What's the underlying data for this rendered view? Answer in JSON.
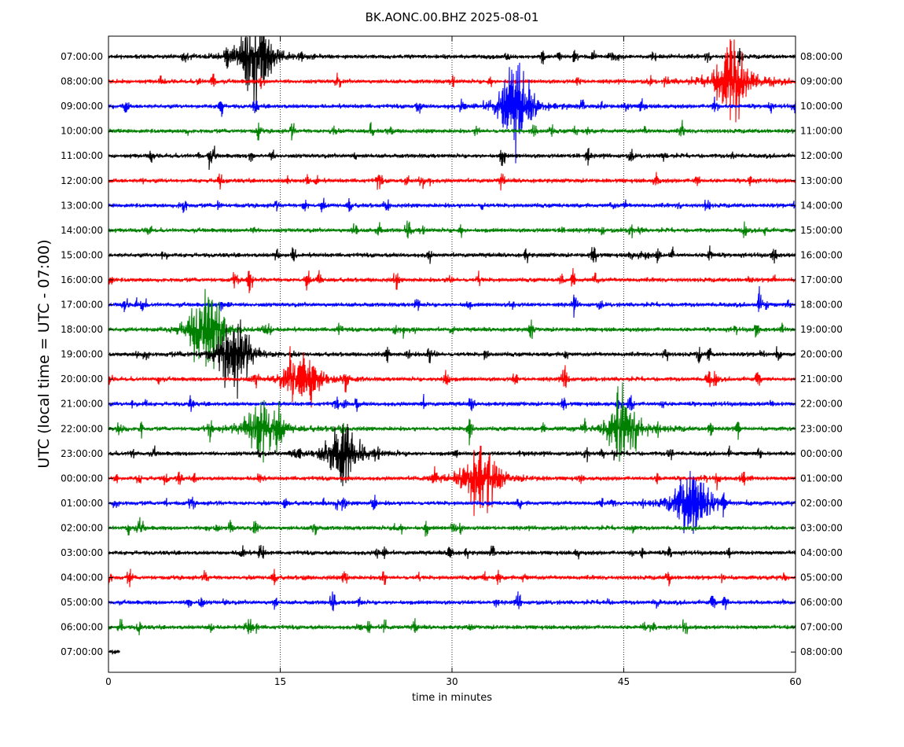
{
  "chart_data": {
    "type": "line",
    "title": "BK.AONC.00.BHZ 2025-08-01",
    "xlabel": "time in minutes",
    "ylabel": "UTC (local time = UTC - 07:00)",
    "xlim": [
      0,
      60
    ],
    "x_ticks": [
      0,
      15,
      30,
      45,
      60
    ],
    "x_tick_labels": [
      "0",
      "15",
      "30",
      "45",
      "60"
    ],
    "grid": "vertical dotted lines at 15, 30, 45",
    "colors": [
      "#000000",
      "#ff0000",
      "#0000ff",
      "#008000"
    ],
    "left_labels": [
      "07:00:00",
      "08:00:00",
      "09:00:00",
      "10:00:00",
      "11:00:00",
      "12:00:00",
      "13:00:00",
      "14:00:00",
      "15:00:00",
      "16:00:00",
      "17:00:00",
      "18:00:00",
      "19:00:00",
      "20:00:00",
      "21:00:00",
      "22:00:00",
      "23:00:00",
      "00:00:00",
      "01:00:00",
      "02:00:00",
      "03:00:00",
      "04:00:00",
      "05:00:00",
      "06:00:00",
      "07:00:00"
    ],
    "right_labels": [
      "08:00:00",
      "09:00:00",
      "10:00:00",
      "11:00:00",
      "12:00:00",
      "13:00:00",
      "14:00:00",
      "15:00:00",
      "16:00:00",
      "17:00:00",
      "18:00:00",
      "19:00:00",
      "20:00:00",
      "21:00:00",
      "22:00:00",
      "23:00:00",
      "00:00:00",
      "01:00:00",
      "02:00:00",
      "03:00:00",
      "04:00:00",
      "05:00:00",
      "06:00:00",
      "07:00:00",
      "08:00:00"
    ],
    "last_trace_end_minute": 1.0,
    "events": [
      {
        "row": 0,
        "t": 12.9,
        "amp": 40,
        "color_row": 3
      },
      {
        "row": 2,
        "t": 35.5,
        "amp": 40
      },
      {
        "row": 1,
        "t": 54.5,
        "amp": 38
      },
      {
        "row": 11,
        "t": 8.5,
        "amp": 35
      },
      {
        "row": 12,
        "t": 11.0,
        "amp": 32
      },
      {
        "row": 13,
        "t": 17.0,
        "amp": 30
      },
      {
        "row": 15,
        "t": 13.5,
        "amp": 32
      },
      {
        "row": 16,
        "t": 20.5,
        "amp": 30
      },
      {
        "row": 17,
        "t": 32.5,
        "amp": 34
      },
      {
        "row": 15,
        "t": 45.0,
        "amp": 34
      },
      {
        "row": 18,
        "t": 51.0,
        "amp": 34
      }
    ]
  }
}
